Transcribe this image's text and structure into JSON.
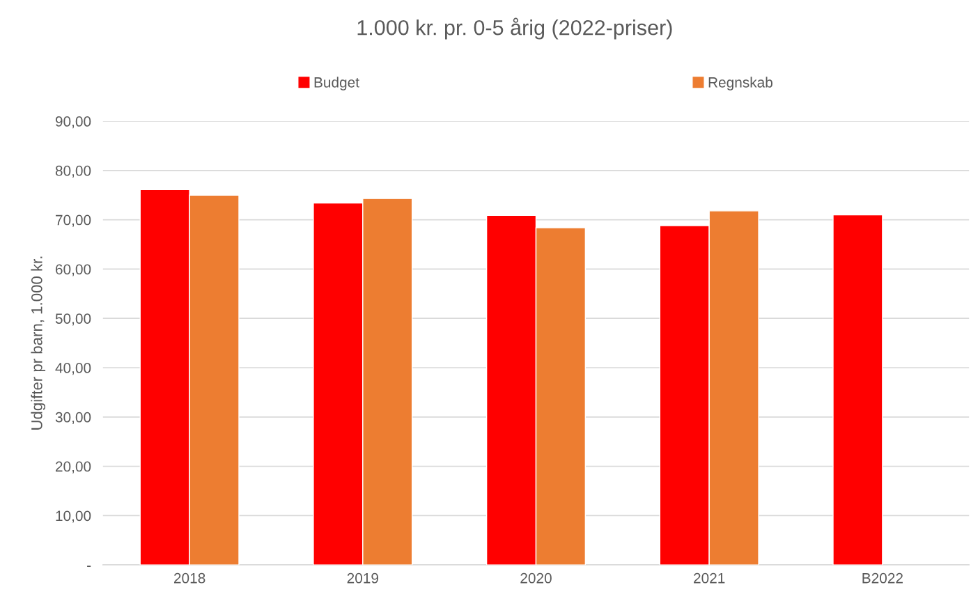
{
  "chart_data": {
    "type": "bar",
    "title": "1.000 kr. pr. 0-5 årig (2022-priser)",
    "ylabel": "Udgifter pr barn, 1.000 kr.",
    "categories": [
      "2018",
      "2019",
      "2020",
      "2021",
      "B2022"
    ],
    "series": [
      {
        "name": "Budget",
        "color": "#ff0000",
        "values": [
          76.1,
          73.4,
          70.9,
          68.8,
          71.0
        ]
      },
      {
        "name": "Regnskab",
        "color": "#ed7d31",
        "values": [
          75.0,
          74.3,
          68.4,
          71.8,
          null
        ]
      }
    ],
    "ylim": [
      0,
      90
    ],
    "yticks": [
      {
        "value": 0,
        "label": "-"
      },
      {
        "value": 10,
        "label": "10,00"
      },
      {
        "value": 20,
        "label": "20,00"
      },
      {
        "value": 30,
        "label": "30,00"
      },
      {
        "value": 40,
        "label": "40,00"
      },
      {
        "value": 50,
        "label": "50,00"
      },
      {
        "value": 60,
        "label": "60,00"
      },
      {
        "value": 70,
        "label": "70,00"
      },
      {
        "value": 80,
        "label": "80,00"
      },
      {
        "value": 90,
        "label": "90,00"
      }
    ],
    "grid": "y",
    "legend": "top"
  }
}
